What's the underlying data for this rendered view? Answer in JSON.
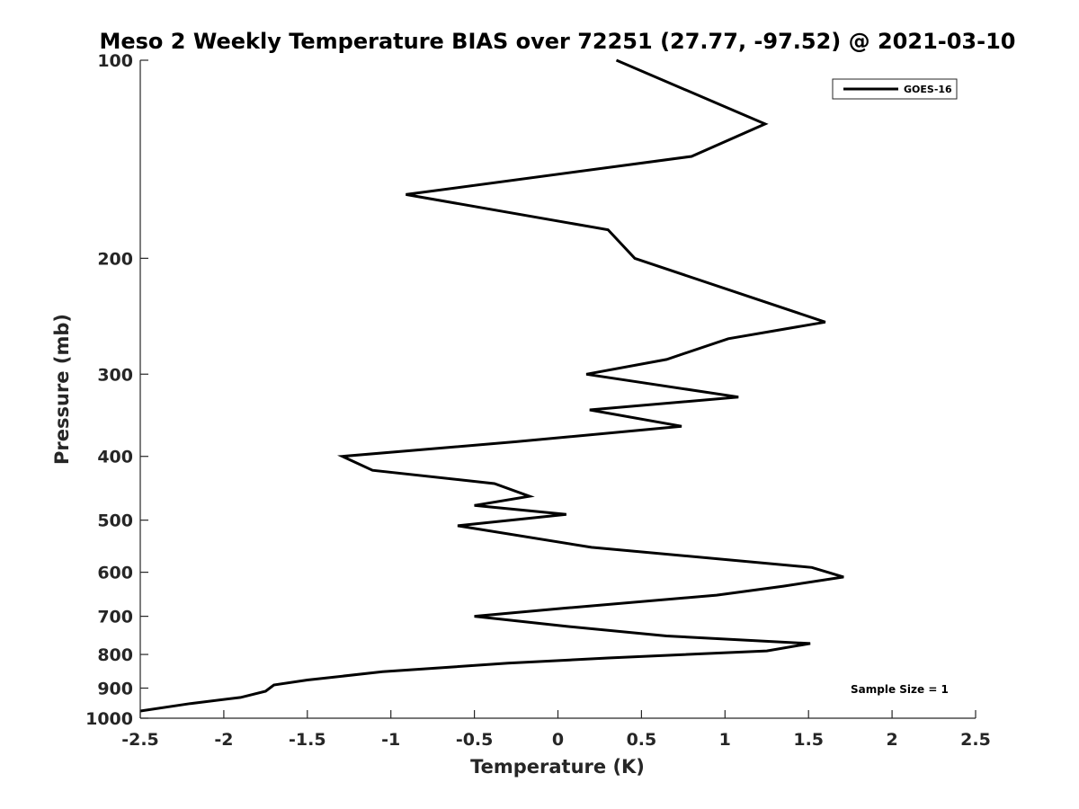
{
  "chart_data": {
    "type": "line",
    "title": "Meso 2 Weekly Temperature BIAS over 72251 (27.77, -97.52) @ 2021-03-10",
    "xlabel": "Temperature (K)",
    "ylabel": "Pressure (mb)",
    "xlim": [
      -2.5,
      2.5
    ],
    "ylim": [
      1000,
      100
    ],
    "yscale": "log",
    "xticks": [
      -2.5,
      -2,
      -1.5,
      -1,
      -0.5,
      0,
      0.5,
      1,
      1.5,
      2,
      2.5
    ],
    "xtick_labels": [
      "-2.5",
      "-2",
      "-1.5",
      "-1",
      "-0.5",
      "0",
      "0.5",
      "1",
      "1.5",
      "2",
      "2.5"
    ],
    "yticks": [
      100,
      200,
      300,
      400,
      500,
      600,
      700,
      800,
      900,
      1000
    ],
    "ytick_labels": [
      "100",
      "200",
      "300",
      "400",
      "500",
      "600",
      "700",
      "800",
      "900",
      "1000"
    ],
    "grid": false,
    "legend_position": "top-right",
    "series": [
      {
        "name": "GOES-16",
        "color": "#000000",
        "x": [
          0.35,
          1.24,
          0.8,
          -0.91,
          0.3,
          0.46,
          1.6,
          1.02,
          0.65,
          0.17,
          1.08,
          0.19,
          0.74,
          -0.25,
          -1.29,
          -1.11,
          -0.38,
          -0.17,
          -0.5,
          0.05,
          -0.6,
          0.2,
          1.52,
          1.71,
          1.35,
          0.95,
          0.05,
          -0.5,
          0.05,
          0.65,
          1.51,
          1.25,
          0.3,
          -0.3,
          -1.05,
          -1.5,
          -1.7,
          -1.75,
          -1.9,
          -2.2,
          -2.5
        ],
        "y": [
          100,
          125,
          140,
          160,
          181,
          200,
          250,
          265,
          285,
          300,
          325,
          340,
          360,
          380,
          400,
          420,
          440,
          460,
          475,
          490,
          510,
          550,
          590,
          610,
          630,
          650,
          680,
          700,
          725,
          750,
          770,
          790,
          810,
          825,
          850,
          875,
          890,
          910,
          930,
          950,
          975
        ]
      }
    ],
    "annotations": [
      {
        "text": "Sample Size = 1",
        "position": "bottom-right"
      }
    ]
  }
}
